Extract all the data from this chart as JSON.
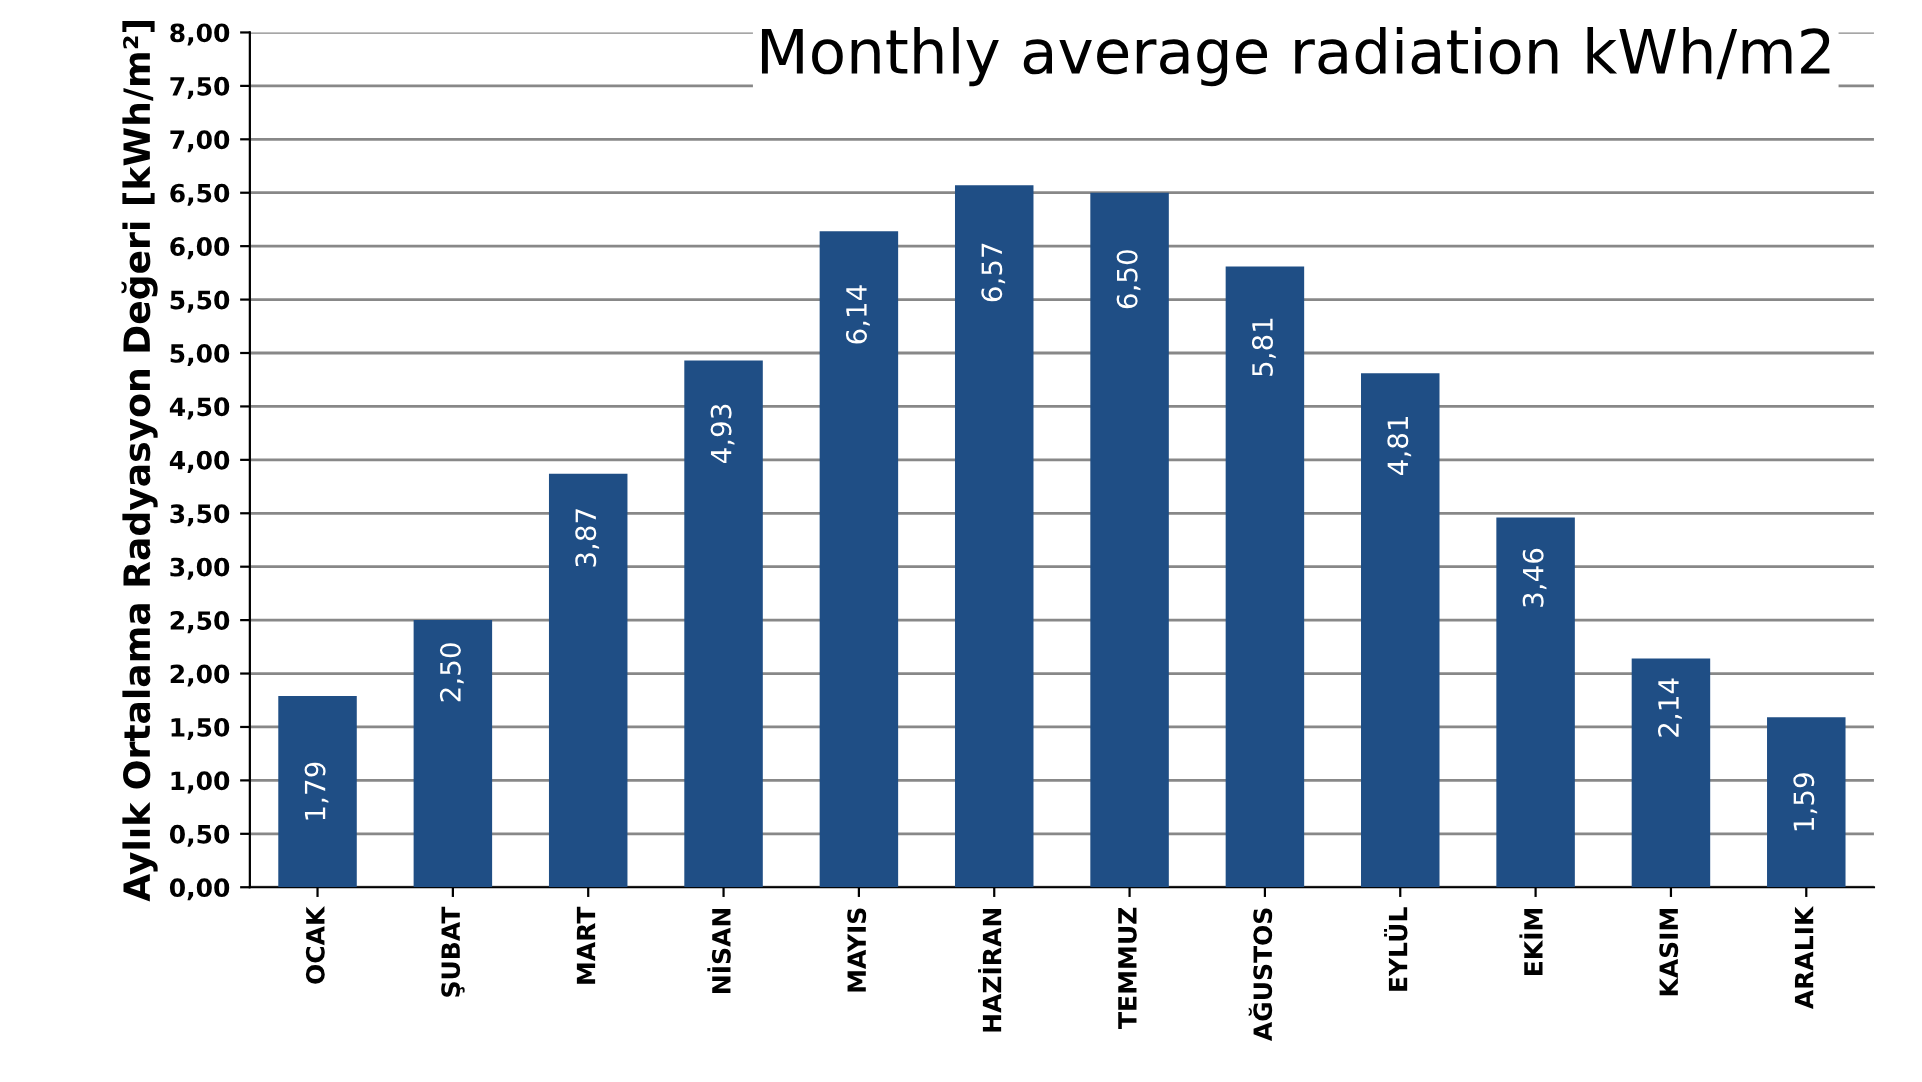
{
  "chart_data": {
    "type": "bar",
    "title": "Monthly average radiation kWh/m2",
    "ylabel": "Aylık Ortalama Radyasyon Değeri [kWh/m²]",
    "categories": [
      "OCAK",
      "ŞUBAT",
      "MART",
      "NİSAN",
      "MAYIS",
      "HAZİRAN",
      "TEMMUZ",
      "AĞUSTOS",
      "EYLÜL",
      "EKİM",
      "KASIM",
      "ARALIK"
    ],
    "values": [
      1.79,
      2.5,
      3.87,
      4.93,
      6.14,
      6.57,
      6.5,
      5.81,
      4.81,
      3.46,
      2.14,
      1.59
    ],
    "value_labels": [
      "1,79",
      "2,50",
      "3,87",
      "4,93",
      "6,14",
      "6,57",
      "6,50",
      "5,81",
      "4,81",
      "3,46",
      "2,14",
      "1,59"
    ],
    "color": "#1f4e85",
    "ylim": [
      0,
      8
    ],
    "yticks": [
      {
        "value": 0,
        "label": "0,00"
      },
      {
        "value": 0.5,
        "label": "0,50"
      },
      {
        "value": 1,
        "label": "1,00"
      },
      {
        "value": 1.5,
        "label": "1,50"
      },
      {
        "value": 2,
        "label": "2,00"
      },
      {
        "value": 2.5,
        "label": "2,50"
      },
      {
        "value": 3,
        "label": "3,00"
      },
      {
        "value": 3.5,
        "label": "3,50"
      },
      {
        "value": 4,
        "label": "4,00"
      },
      {
        "value": 4.5,
        "label": "4,50"
      },
      {
        "value": 5,
        "label": "5,00"
      },
      {
        "value": 5.5,
        "label": "5,50"
      },
      {
        "value": 6,
        "label": "6,00"
      },
      {
        "value": 6.5,
        "label": "6,50"
      },
      {
        "value": 7,
        "label": "7,00"
      },
      {
        "value": 7.5,
        "label": "7,50"
      },
      {
        "value": 8,
        "label": "8,00"
      }
    ],
    "grid": "y"
  }
}
